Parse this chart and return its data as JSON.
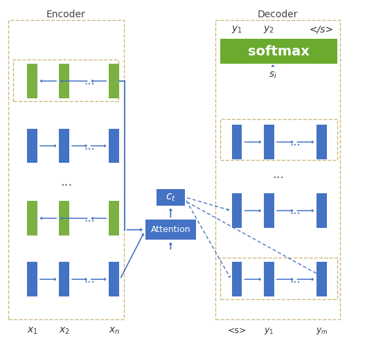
{
  "bg_color": "#ffffff",
  "blue_color": "#4472C4",
  "green_color": "#7BB142",
  "softmax_color": "#6AAB2E",
  "arrow_color": "#4472C4",
  "encoder_label": "Encoder",
  "decoder_label": "Decoder",
  "softmax_label": "softmax",
  "attention_label": "Attention",
  "ct_label": "$c_t$",
  "si_label": "$s_i$",
  "enc_x_labels": [
    "$x_1$",
    "$x_2$",
    "$x_n$"
  ],
  "dec_bottom_labels": [
    "<s>",
    "$y_1$",
    "$y_m$"
  ],
  "dec_top_labels": [
    "$y_1$",
    "$y_2$",
    "</s>"
  ],
  "fig_width": 5.66,
  "fig_height": 4.88,
  "dpi": 100,
  "dashed_color": "#C8B97A"
}
